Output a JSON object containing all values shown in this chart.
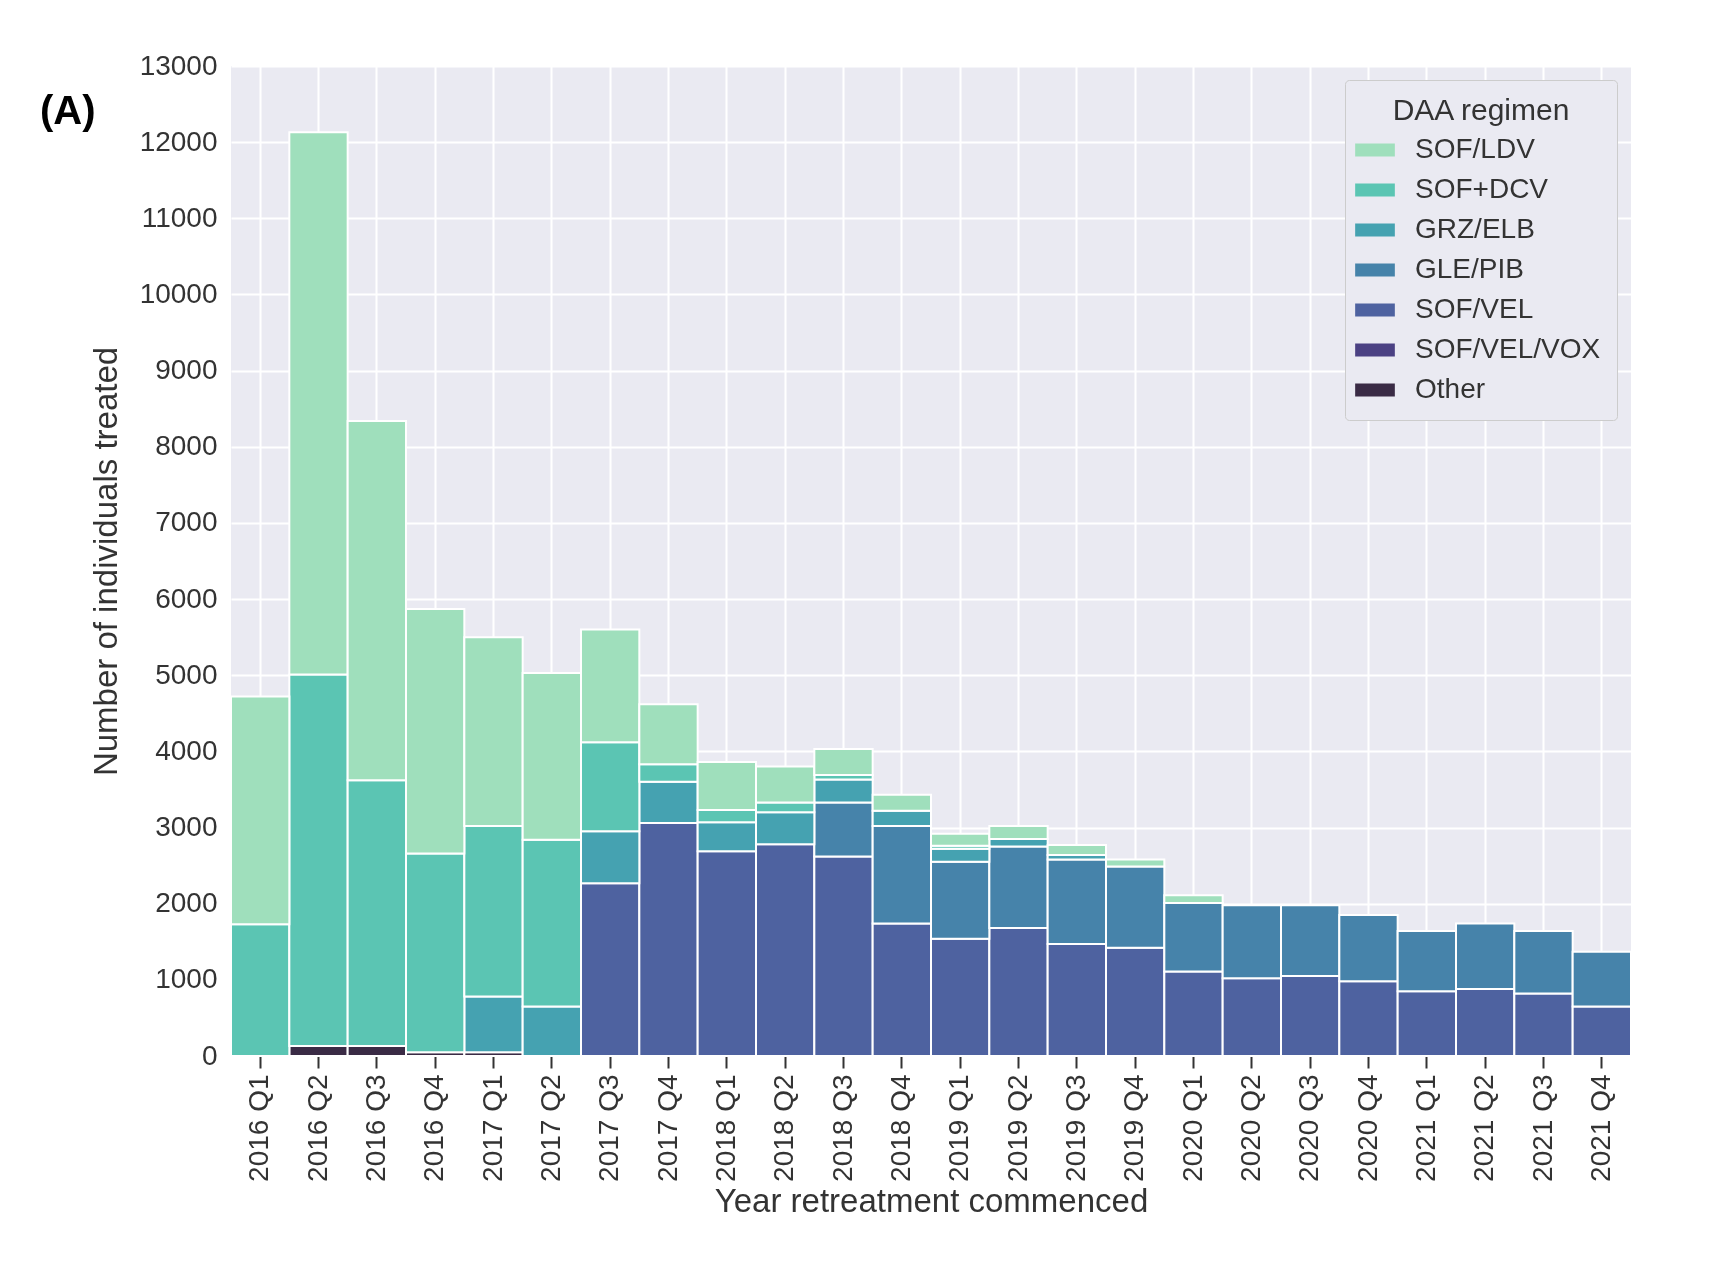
{
  "chart_data": {
    "type": "bar",
    "stacked": true,
    "xlabel": "Year retreatment commenced",
    "ylabel": "Number of individuals treated",
    "legend_title": "DAA regimen",
    "legend": "top right",
    "grid": true,
    "annotations": [
      "(A)"
    ],
    "categories": [
      "2016 Q1",
      "2016 Q2",
      "2016 Q3",
      "2016 Q4",
      "2017 Q1",
      "2017 Q2",
      "2017 Q3",
      "2017 Q4",
      "2018 Q1",
      "2018 Q2",
      "2018 Q3",
      "2018 Q4",
      "2019 Q1",
      "2019 Q2",
      "2019 Q3",
      "2019 Q4",
      "2020 Q1",
      "2020 Q2",
      "2020 Q3",
      "2020 Q4",
      "2021 Q1",
      "2021 Q2",
      "2021 Q3",
      "2021 Q4"
    ],
    "ylim": [
      0,
      13000
    ],
    "yticks": [
      0,
      1000,
      2000,
      3000,
      4000,
      5000,
      6000,
      7000,
      8000,
      9000,
      10000,
      11000,
      12000,
      13000
    ],
    "series": [
      {
        "name": "Other",
        "color": "#3a2b45",
        "values": [
          0,
          130,
          130,
          50,
          50,
          0,
          0,
          0,
          0,
          0,
          0,
          0,
          0,
          0,
          0,
          0,
          0,
          0,
          0,
          0,
          0,
          0,
          0,
          0
        ]
      },
      {
        "name": "SOF/VEL/VOX",
        "color": "#4b4183",
        "values": [
          0,
          0,
          0,
          0,
          0,
          0,
          0,
          0,
          0,
          0,
          0,
          0,
          0,
          0,
          0,
          0,
          0,
          0,
          0,
          0,
          0,
          0,
          0,
          0
        ]
      },
      {
        "name": "SOF/VEL",
        "color": "#4e62a0",
        "values": [
          0,
          0,
          0,
          0,
          0,
          0,
          2270,
          3060,
          2690,
          2780,
          2620,
          1740,
          1540,
          1680,
          1470,
          1420,
          1110,
          1020,
          1050,
          980,
          850,
          880,
          820,
          650
        ]
      },
      {
        "name": "GLE/PIB",
        "color": "#4683aa",
        "values": [
          0,
          0,
          0,
          0,
          0,
          0,
          0,
          0,
          0,
          0,
          710,
          1280,
          1010,
          1070,
          1110,
          1070,
          900,
          960,
          930,
          870,
          790,
          860,
          820,
          720
        ]
      },
      {
        "name": "GRZ/ELB",
        "color": "#45a2b1",
        "values": [
          0,
          0,
          0,
          0,
          730,
          650,
          680,
          540,
          380,
          420,
          300,
          200,
          170,
          100,
          60,
          0,
          0,
          0,
          0,
          0,
          0,
          0,
          0,
          0
        ]
      },
      {
        "name": "SOF+DCV",
        "color": "#5bc5b3",
        "values": [
          1730,
          4880,
          3490,
          2610,
          2240,
          2190,
          1170,
          230,
          160,
          130,
          60,
          null,
          40,
          0,
          null,
          null,
          0,
          0,
          0,
          0,
          0,
          0,
          0,
          0
        ]
      },
      {
        "name": "SOF/LDV",
        "color": "#9fdfbc",
        "values": [
          2990,
          7120,
          4720,
          3210,
          2480,
          2190,
          1480,
          790,
          630,
          470,
          340,
          210,
          160,
          170,
          130,
          90,
          100,
          0,
          0,
          0,
          0,
          0,
          0,
          0
        ]
      }
    ]
  }
}
